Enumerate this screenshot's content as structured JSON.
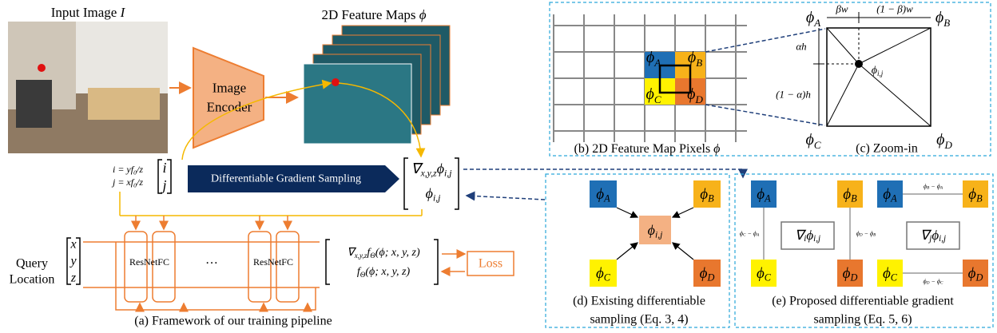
{
  "panel_a": {
    "input_label": [
      "Input Image ",
      {
        "i": "I"
      }
    ],
    "feature_label": [
      "2D Feature Maps ",
      {
        "i": "ϕ"
      }
    ],
    "encoder": [
      "Image",
      "Encoder"
    ],
    "eq_i": [
      "i = yf",
      {
        "s": "0"
      },
      "/z"
    ],
    "eq_j": [
      "j = xf",
      {
        "s": "0"
      },
      "/z"
    ],
    "index_vector": [
      "i",
      "j"
    ],
    "sampling_label": "Differentiable Gradient Sampling",
    "sampled": [
      [
        "∇",
        {
          "s": "x,y,z"
        },
        "ϕ",
        {
          "s": "i,j"
        }
      ],
      [
        "ϕ",
        {
          "s": "i,j"
        }
      ]
    ],
    "query_label": [
      "Query",
      "Location"
    ],
    "query_vector": [
      "x",
      "y",
      "z"
    ],
    "blocks": [
      "ResNetFC",
      "ResNetFC"
    ],
    "ellipsis": "···",
    "outputs": [
      [
        "∇",
        {
          "s": "x,y,z"
        },
        "f",
        {
          "s": "Θ"
        },
        "(ϕ; x, y, z)"
      ],
      [
        "f",
        {
          "s": "Θ"
        },
        "(ϕ; x, y, z)"
      ]
    ],
    "loss": "Loss",
    "caption": "(a) Framework of our training pipeline"
  },
  "panel_b": {
    "pixels": [
      [
        "ϕ",
        {
          "s": "A"
        }
      ],
      [
        "ϕ",
        {
          "s": "B"
        }
      ],
      [
        "ϕ",
        {
          "s": "C"
        }
      ],
      [
        "ϕ",
        {
          "s": "D"
        }
      ]
    ],
    "caption": [
      "(b) 2D Feature Map Pixels ",
      {
        "i": "ϕ"
      }
    ]
  },
  "panel_c": {
    "corners": [
      [
        "ϕ",
        {
          "s": "A"
        }
      ],
      [
        "ϕ",
        {
          "s": "B"
        }
      ],
      [
        "ϕ",
        {
          "s": "C"
        }
      ],
      [
        "ϕ",
        {
          "s": "D"
        }
      ]
    ],
    "beta_w": "βw",
    "one_minus_beta_w": "(1 − β)w",
    "alpha_h": "αh",
    "one_minus_alpha_h": "(1 − α)h",
    "point": [
      "ϕ",
      {
        "s": "i,j"
      }
    ],
    "caption": "(c) Zoom-in"
  },
  "panel_d": {
    "corners": [
      [
        "ϕ",
        {
          "s": "A"
        }
      ],
      [
        "ϕ",
        {
          "s": "B"
        }
      ],
      [
        "ϕ",
        {
          "s": "C"
        }
      ],
      [
        "ϕ",
        {
          "s": "D"
        }
      ]
    ],
    "point": [
      "ϕ",
      {
        "s": "i,j"
      }
    ],
    "caption": [
      "(d) Existing differentiable",
      "sampling (Eq. 3, 4)"
    ]
  },
  "panel_e": {
    "corners_i": [
      [
        "ϕ",
        {
          "s": "A"
        }
      ],
      [
        "ϕ",
        {
          "s": "B"
        }
      ],
      [
        "ϕ",
        {
          "s": "C"
        }
      ],
      [
        "ϕ",
        {
          "s": "D"
        }
      ]
    ],
    "diff_i": [
      [
        "ϕ",
        {
          "s": "C"
        },
        " − ϕ",
        {
          "s": "A"
        }
      ],
      [
        "ϕ",
        {
          "s": "D"
        },
        " − ϕ",
        {
          "s": "B"
        }
      ]
    ],
    "grad_i": [
      "∇",
      {
        "s": "i"
      },
      "ϕ",
      {
        "s": "i,j"
      }
    ],
    "corners_j": [
      [
        "ϕ",
        {
          "s": "A"
        }
      ],
      [
        "ϕ",
        {
          "s": "B"
        }
      ],
      [
        "ϕ",
        {
          "s": "C"
        }
      ],
      [
        "ϕ",
        {
          "s": "D"
        }
      ]
    ],
    "diff_j": [
      [
        "ϕ",
        {
          "s": "B"
        },
        " − ϕ",
        {
          "s": "A"
        }
      ],
      [
        "ϕ",
        {
          "s": "D"
        },
        " − ϕ",
        {
          "s": "C"
        }
      ]
    ],
    "grad_j": [
      "∇",
      {
        "s": "j"
      },
      "ϕ",
      {
        "s": "i,j"
      }
    ],
    "caption": [
      "(e) Proposed differentiable gradient",
      "sampling (Eq. 5, 6)"
    ]
  }
}
